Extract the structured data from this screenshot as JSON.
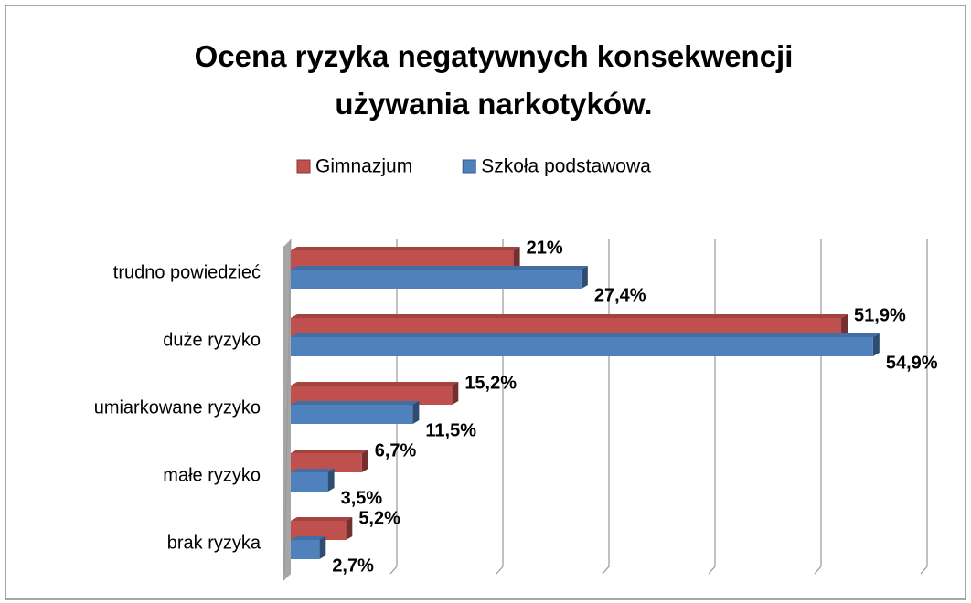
{
  "chart_data": {
    "type": "bar",
    "orientation": "horizontal",
    "title": "Ocena ryzyka negatywnych konsekwencji używania narkotyków.",
    "categories": [
      "trudno powiedzieć",
      "duże ryzyko",
      "umiarkowane ryzyko",
      "małe ryzyko",
      "brak ryzyka"
    ],
    "series": [
      {
        "name": "Gimnazjum",
        "color": "#c0504d",
        "values": [
          21,
          51.9,
          15.2,
          6.7,
          5.2
        ],
        "value_labels": [
          "21%",
          "51,9%",
          "15,2%",
          "6,7%",
          "5,2%"
        ]
      },
      {
        "name": "Szkoła podstawowa",
        "color": "#4f81bd",
        "values": [
          27.4,
          54.9,
          11.5,
          3.5,
          2.7
        ],
        "value_labels": [
          "27,4%",
          "54,9%",
          "11,5%",
          "3,5%",
          "2,7%"
        ]
      }
    ],
    "xlim": [
      0,
      60
    ],
    "xticks": [
      0,
      10,
      20,
      30,
      40,
      50,
      60
    ],
    "grid": true,
    "legend": "top"
  }
}
